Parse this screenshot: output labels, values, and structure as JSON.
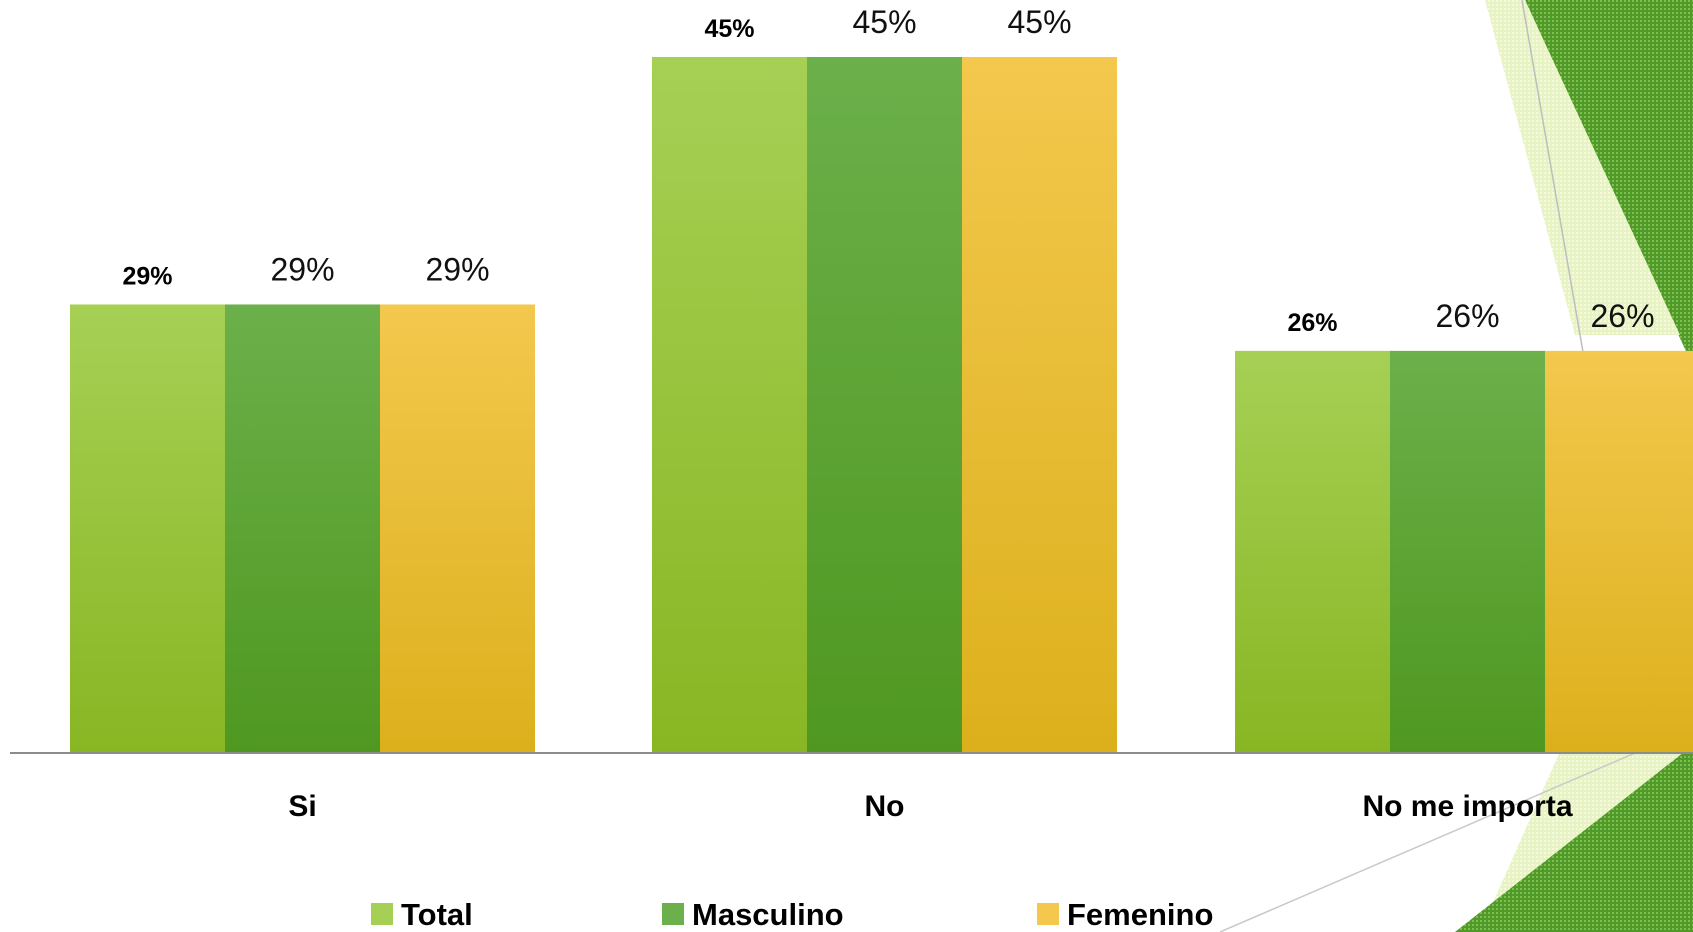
{
  "chart_data": {
    "type": "bar",
    "categories": [
      "Si",
      "No",
      "No me importa"
    ],
    "series": [
      {
        "name": "Total",
        "values": [
          29,
          45,
          26
        ],
        "labels": [
          "29%",
          "45%",
          "26%"
        ]
      },
      {
        "name": "Masculino",
        "values": [
          29,
          45,
          26
        ],
        "labels": [
          "29%",
          "45%",
          "26%"
        ]
      },
      {
        "name": "Femenino",
        "values": [
          29,
          45,
          26
        ],
        "labels": [
          "29%",
          "45%",
          "26%"
        ]
      }
    ],
    "ylim": [
      0,
      45
    ],
    "grid": false,
    "legend_position": "bottom",
    "colors": {
      "Total": [
        "#a6d055",
        "#88b623"
      ],
      "Masculino": [
        "#6bb04a",
        "#4f9820"
      ],
      "Femenino": [
        "#f3c84d",
        "#dcb01c"
      ]
    }
  }
}
